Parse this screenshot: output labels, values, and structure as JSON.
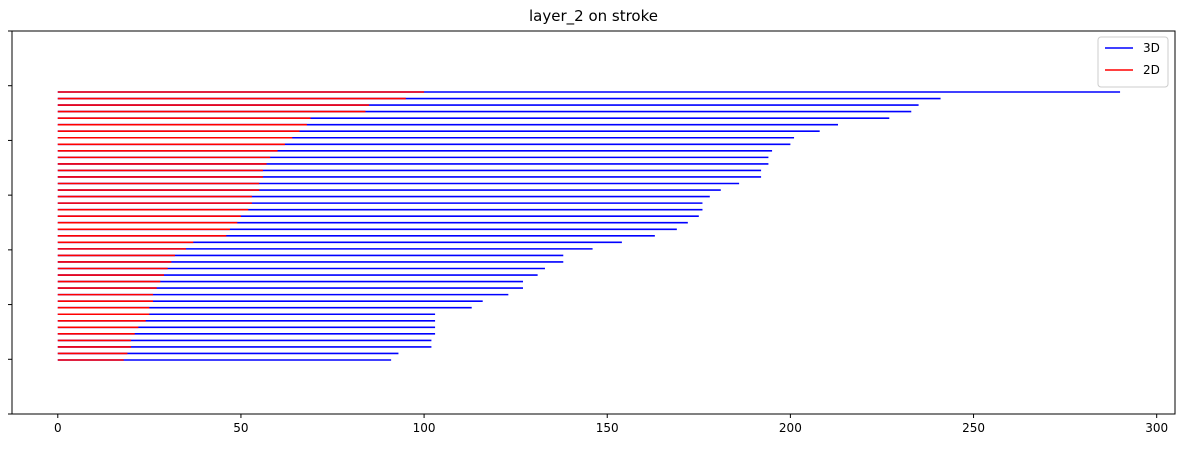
{
  "chart_data": {
    "type": "bar",
    "orientation": "horizontal",
    "title": "layer_2 on stroke",
    "xlabel": "",
    "ylabel": "",
    "xlim": [
      -12.5,
      305
    ],
    "xticks": [
      0,
      50,
      100,
      150,
      200,
      250,
      300
    ],
    "grid": false,
    "legend_position": "top-right",
    "series": [
      {
        "name": "3D",
        "color": "#0000ff",
        "values": [
          290,
          241,
          235,
          233,
          227,
          213,
          208,
          201,
          200,
          195,
          194,
          194,
          192,
          192,
          186,
          181,
          178,
          176,
          176,
          175,
          172,
          169,
          163,
          154,
          146,
          138,
          138,
          133,
          131,
          127,
          127,
          123,
          116,
          113,
          103,
          103,
          103,
          103,
          102,
          102,
          93,
          91
        ]
      },
      {
        "name": "2D",
        "color": "#ff0000",
        "values": [
          100,
          95,
          85,
          84,
          69,
          68,
          66,
          64,
          62,
          60,
          58,
          57,
          56,
          56,
          55,
          55,
          53,
          53,
          52,
          50,
          49,
          47,
          46,
          37,
          35,
          32,
          31,
          30,
          29,
          28,
          27,
          26,
          26,
          25,
          25,
          24,
          22,
          21,
          20,
          20,
          19,
          18
        ]
      }
    ]
  }
}
